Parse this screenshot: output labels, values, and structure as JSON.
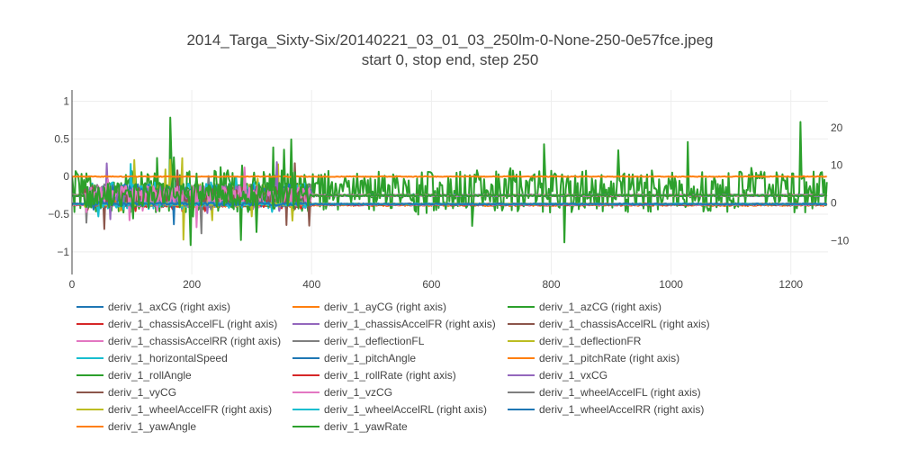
{
  "chart_data": {
    "type": "line",
    "title": "2014_Targa_Sixty-Six/20140221_03_01_03_250lm-0-None-250-0e57fce.jpeg",
    "subtitle": "start 0, stop end, step 250",
    "xlabel": "",
    "ylabel": "",
    "y2label": "",
    "xlim": [
      0,
      1262
    ],
    "ylim": [
      -1.3,
      1.15
    ],
    "y2lim": [
      -19,
      30
    ],
    "x_ticks": [
      0,
      200,
      400,
      600,
      800,
      1000,
      1200
    ],
    "y_ticks": [
      1,
      0.5,
      0,
      -0.5,
      -1
    ],
    "y_tick_labels": [
      "1",
      "0.5",
      "0",
      "−0.5",
      "−1"
    ],
    "y2_ticks": [
      20,
      10,
      0,
      -10
    ],
    "y2_tick_labels": [
      "20",
      "10",
      "0",
      "−10"
    ],
    "grid": true,
    "legend_position": "bottom",
    "series": [
      {
        "name": "deriv_1_axCG (right axis)",
        "color": "#1f77b4",
        "axis": "y2",
        "base": -0.3,
        "amp": 1.2,
        "amp_late": 0.4
      },
      {
        "name": "deriv_1_ayCG (right axis)",
        "color": "#ff7f0e",
        "axis": "y2",
        "base": -0.6,
        "amp": 1.0,
        "amp_late": 0.5
      },
      {
        "name": "deriv_1_azCG (right axis)",
        "color": "#2ca02c",
        "axis": "y2",
        "base": 2.5,
        "amp": 7,
        "amp_late": 7
      },
      {
        "name": "deriv_1_chassisAccelFL (right axis)",
        "color": "#d62728",
        "axis": "y2",
        "base": -0.5,
        "amp": 1.2,
        "amp_late": 0.4
      },
      {
        "name": "deriv_1_chassisAccelFR (right axis)",
        "color": "#9467bd",
        "axis": "y2",
        "base": -0.4,
        "amp": 1.0,
        "amp_late": 0.4
      },
      {
        "name": "deriv_1_chassisAccelRL (right axis)",
        "color": "#8c564b",
        "axis": "y2",
        "base": -0.4,
        "amp": 1.0,
        "amp_late": 0.4
      },
      {
        "name": "deriv_1_chassisAccelRR (right axis)",
        "color": "#e377c2",
        "axis": "y2",
        "base": -0.4,
        "amp": 1.0,
        "amp_late": 0.4
      },
      {
        "name": "deriv_1_deflectionFL",
        "color": "#7f7f7f",
        "axis": "y",
        "base": -0.25,
        "amp": 0.3,
        "amp_late": 0.02
      },
      {
        "name": "deriv_1_deflectionFR",
        "color": "#bcbd22",
        "axis": "y",
        "base": -0.25,
        "amp": 0.3,
        "amp_late": 0.02
      },
      {
        "name": "deriv_1_horizontalSpeed",
        "color": "#17becf",
        "axis": "y",
        "base": -0.25,
        "amp": 0.35,
        "amp_late": 0.02
      },
      {
        "name": "deriv_1_pitchAngle",
        "color": "#1f77b4",
        "axis": "y",
        "base": -0.25,
        "amp": 0.3,
        "amp_late": 0.02
      },
      {
        "name": "deriv_1_pitchRate (right axis)",
        "color": "#ff7f0e",
        "axis": "y2",
        "base": -0.3,
        "amp": 0.8,
        "amp_late": 0.3
      },
      {
        "name": "deriv_1_rollAngle",
        "color": "#2ca02c",
        "axis": "y",
        "base": -0.25,
        "amp": 0.3,
        "amp_late": 0.02
      },
      {
        "name": "deriv_1_rollRate (right axis)",
        "color": "#d62728",
        "axis": "y2",
        "base": -0.3,
        "amp": 0.8,
        "amp_late": 0.3
      },
      {
        "name": "deriv_1_vxCG",
        "color": "#9467bd",
        "axis": "y",
        "base": -0.25,
        "amp": 0.25,
        "amp_late": 0.02
      },
      {
        "name": "deriv_1_vyCG",
        "color": "#8c564b",
        "axis": "y",
        "base": -0.25,
        "amp": 0.25,
        "amp_late": 0.02
      },
      {
        "name": "deriv_1_vzCG",
        "color": "#e377c2",
        "axis": "y",
        "base": -0.25,
        "amp": 0.25,
        "amp_late": 0.02
      },
      {
        "name": "deriv_1_wheelAccelFL (right axis)",
        "color": "#7f7f7f",
        "axis": "y2",
        "base": -0.3,
        "amp": 0.8,
        "amp_late": 0.3
      },
      {
        "name": "deriv_1_wheelAccelFR (right axis)",
        "color": "#bcbd22",
        "axis": "y2",
        "base": -0.3,
        "amp": 0.8,
        "amp_late": 0.3
      },
      {
        "name": "deriv_1_wheelAccelRL (right axis)",
        "color": "#17becf",
        "axis": "y2",
        "base": -0.3,
        "amp": 0.8,
        "amp_late": 0.3
      },
      {
        "name": "deriv_1_wheelAccelRR (right axis)",
        "color": "#1f77b4",
        "axis": "y2",
        "base": -0.3,
        "amp": 0.8,
        "amp_late": 0.3
      },
      {
        "name": "deriv_1_yawAngle",
        "color": "#ff7f0e",
        "axis": "y",
        "base": 0.0,
        "amp": 0.01,
        "amp_late": 0.01
      },
      {
        "name": "deriv_1_yawRate",
        "color": "#2ca02c",
        "axis": "y",
        "base": -0.25,
        "amp": 0.35,
        "amp_late": 0.02
      }
    ]
  }
}
